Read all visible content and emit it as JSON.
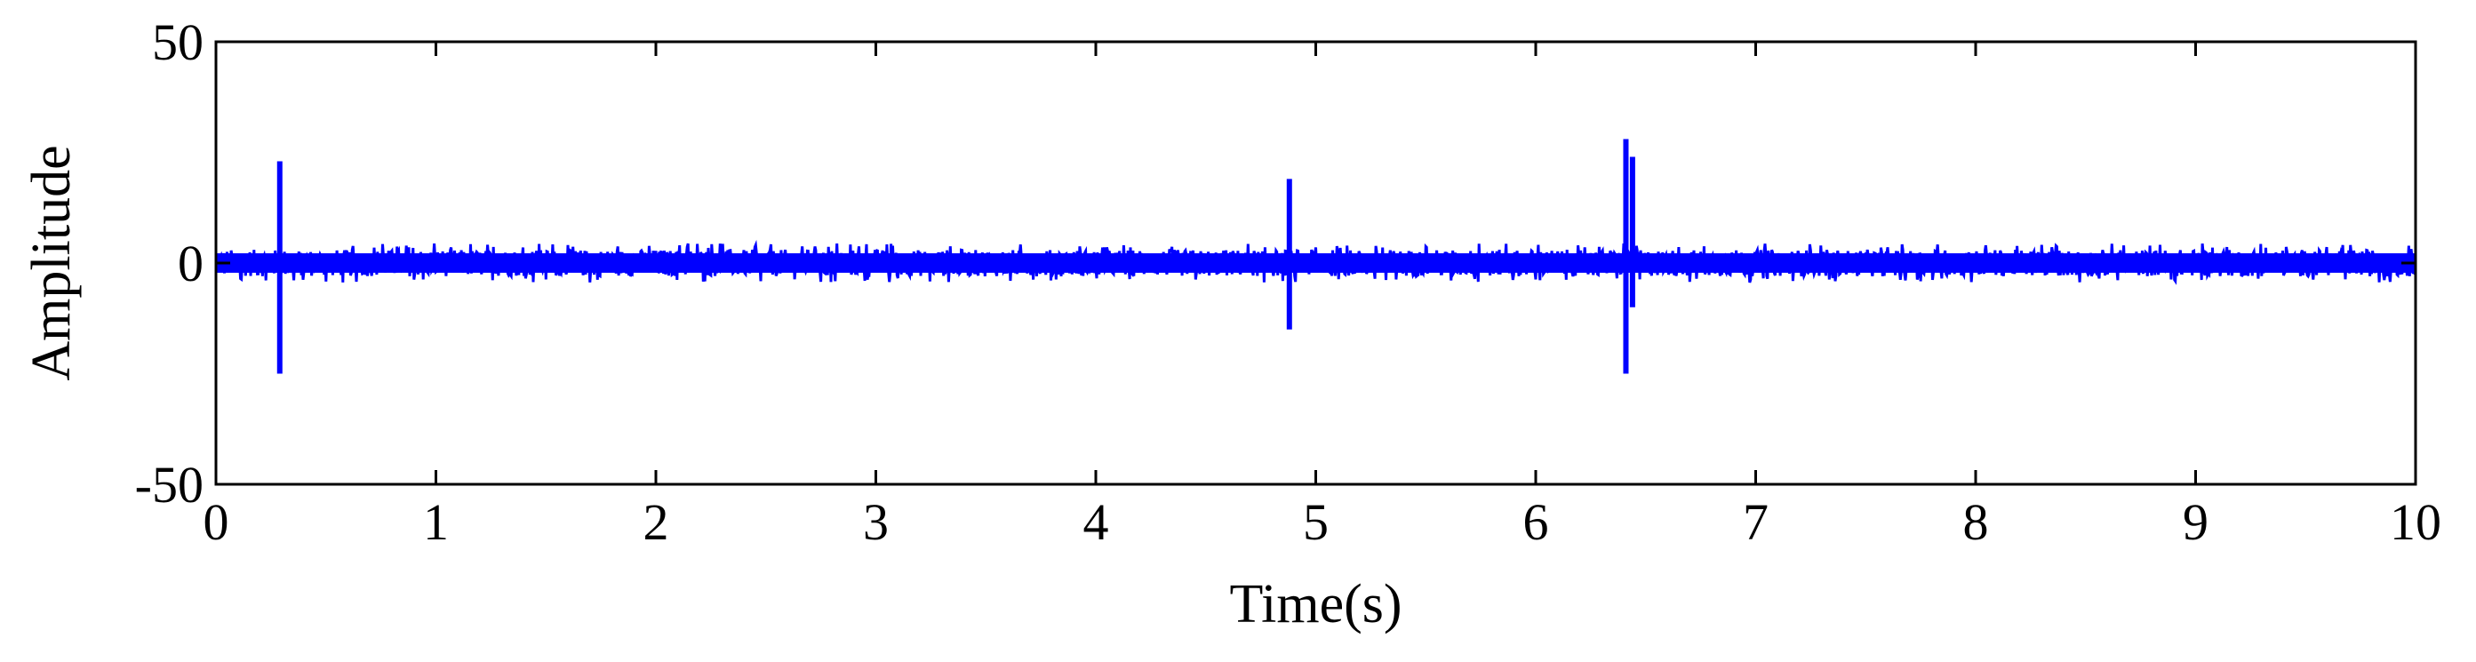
{
  "chart_data": {
    "type": "line",
    "xlabel": "Time(s)",
    "ylabel": "Amplitude",
    "xlim": [
      0,
      10
    ],
    "ylim": [
      -50,
      50
    ],
    "xticks": [
      "0",
      "1",
      "2",
      "3",
      "4",
      "5",
      "6",
      "7",
      "8",
      "9",
      "10"
    ],
    "yticks": [
      "50",
      "0",
      "-50"
    ],
    "grid": false,
    "series": [
      {
        "color": "#0000ff",
        "noise_band": [
          -4,
          4
        ],
        "spikes": [
          {
            "x": 0.29,
            "max": 23,
            "min": -25
          },
          {
            "x": 4.88,
            "max": 19,
            "min": -15
          },
          {
            "x": 6.41,
            "max": 28,
            "min": -25
          },
          {
            "x": 6.44,
            "max": 24,
            "min": -10
          }
        ]
      }
    ]
  }
}
